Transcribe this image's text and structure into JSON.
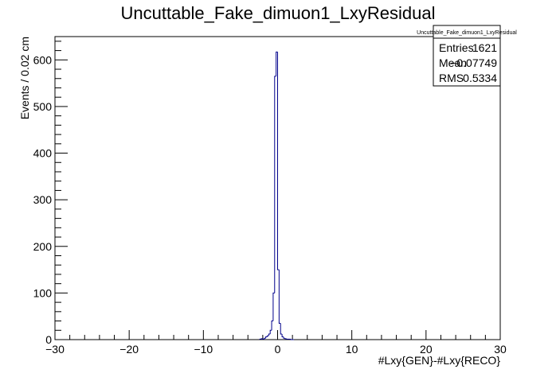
{
  "chart_data": {
    "type": "histogram",
    "title": "Uncuttable_Fake_dimuon1_LxyResidual",
    "xlabel": "#Lxy{GEN}-#Lxy{RECO}",
    "ylabel": "Events / 0.02 cm",
    "xlim": [
      -30,
      30
    ],
    "ylim": [
      0,
      650
    ],
    "x_ticks": [
      -30,
      -20,
      -10,
      0,
      10,
      20,
      30
    ],
    "x_tick_labels": [
      "−30",
      "−20",
      "−10",
      "0",
      "10",
      "20",
      "30"
    ],
    "y_ticks": [
      0,
      100,
      200,
      300,
      400,
      500,
      600
    ],
    "y_tick_labels": [
      "0",
      "100",
      "200",
      "300",
      "400",
      "500",
      "600"
    ],
    "grid": false,
    "line_color": "#00008b",
    "bins": {
      "x_left": [
        -2.4,
        -2.2,
        -2.0,
        -1.8,
        -1.6,
        -1.4,
        -1.2,
        -1.0,
        -0.8,
        -0.6,
        -0.4,
        -0.2,
        0.0,
        0.2,
        0.4,
        0.6,
        0.8,
        1.0,
        1.2,
        1.4,
        1.6,
        1.8,
        2.0
      ],
      "width": 0.2,
      "values": [
        1,
        2,
        1,
        3,
        6,
        8,
        12,
        20,
        40,
        100,
        565,
        617,
        150,
        35,
        12,
        6,
        3,
        2,
        1,
        1,
        1,
        0,
        0
      ]
    },
    "stats": {
      "name": "Uncuttable_Fake_dimuon1_LxyResidual",
      "rows": [
        {
          "label": "Entries",
          "value": "1621"
        },
        {
          "label": "Mean",
          "value": "−0.07749"
        },
        {
          "label": "RMS",
          "value": "0.5334"
        }
      ]
    }
  }
}
